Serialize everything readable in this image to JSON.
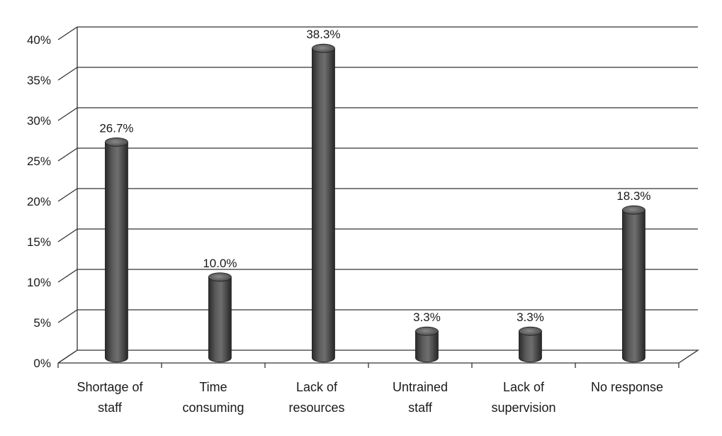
{
  "chart_data": {
    "type": "bar",
    "style": "3d-cylinder",
    "categories": [
      [
        "Shortage of",
        "staff"
      ],
      [
        "Time",
        "consuming"
      ],
      [
        "Lack of",
        "resources"
      ],
      [
        "Untrained",
        "staff"
      ],
      [
        "Lack of",
        "supervision"
      ],
      [
        "No response"
      ]
    ],
    "values": [
      26.7,
      10.0,
      38.3,
      3.3,
      3.3,
      18.3
    ],
    "data_labels": [
      "26.7%",
      "10.0%",
      "38.3%",
      "3.3%",
      "3.3%",
      "18.3%"
    ],
    "y_ticks": [
      "0%",
      "5%",
      "10%",
      "15%",
      "20%",
      "25%",
      "30%",
      "35%",
      "40%"
    ],
    "ylim": [
      0,
      40
    ],
    "grid": true,
    "legend": "none",
    "bar_color": "#4a4a4a"
  }
}
